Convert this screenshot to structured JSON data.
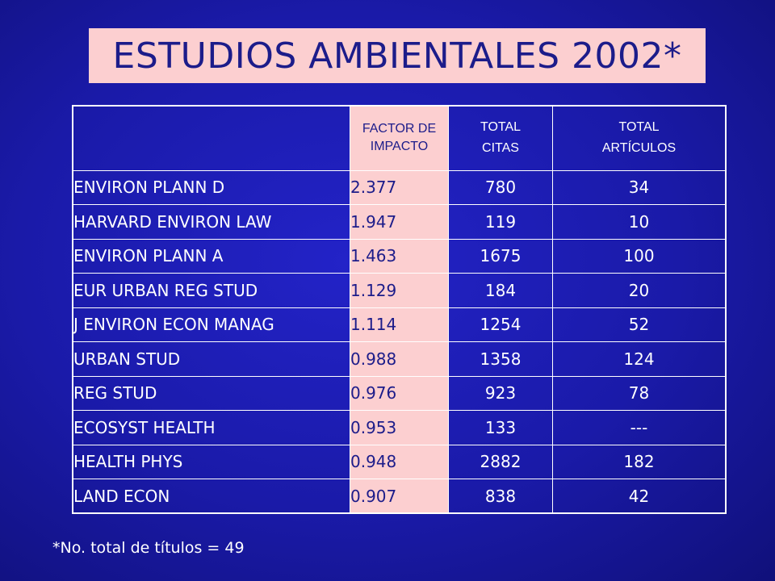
{
  "title": "ESTUDIOS AMBIENTALES 2002*",
  "headers": {
    "impact_factor": [
      "FACTOR DE",
      "IMPACTO"
    ],
    "total_citations": [
      "TOTAL",
      "CITAS"
    ],
    "total_articles": [
      "TOTAL",
      "ARTÍCULOS"
    ]
  },
  "rows": [
    {
      "journal": "ENVIRON PLANN D",
      "impact_factor": "2.377",
      "total_citations": "780",
      "total_articles": "34"
    },
    {
      "journal": "HARVARD ENVIRON LAW",
      "impact_factor": "1.947",
      "total_citations": "119",
      "total_articles": "10"
    },
    {
      "journal": "ENVIRON PLANN A",
      "impact_factor": "1.463",
      "total_citations": "1675",
      "total_articles": "100"
    },
    {
      "journal": "EUR URBAN REG STUD",
      "impact_factor": "1.129",
      "total_citations": "184",
      "total_articles": "20"
    },
    {
      "journal": "J ENVIRON ECON MANAG",
      "impact_factor": "1.114",
      "total_citations": "1254",
      "total_articles": "52"
    },
    {
      "journal": "URBAN STUD",
      "impact_factor": "0.988",
      "total_citations": "1358",
      "total_articles": "124"
    },
    {
      "journal": "REG STUD",
      "impact_factor": "0.976",
      "total_citations": "923",
      "total_articles": "78"
    },
    {
      "journal": "ECOSYST HEALTH",
      "impact_factor": "0.953",
      "total_citations": "133",
      "total_articles": "---"
    },
    {
      "journal": "HEALTH PHYS",
      "impact_factor": "0.948",
      "total_citations": "2882",
      "total_articles": "182"
    },
    {
      "journal": "LAND ECON",
      "impact_factor": "0.907",
      "total_citations": "838",
      "total_articles": "42"
    }
  ],
  "footnote": "*No. total de títulos = 49",
  "colors": {
    "background": "#1a1ab0",
    "pink": "#fccfd0",
    "dark_text": "#1c1c8a"
  }
}
